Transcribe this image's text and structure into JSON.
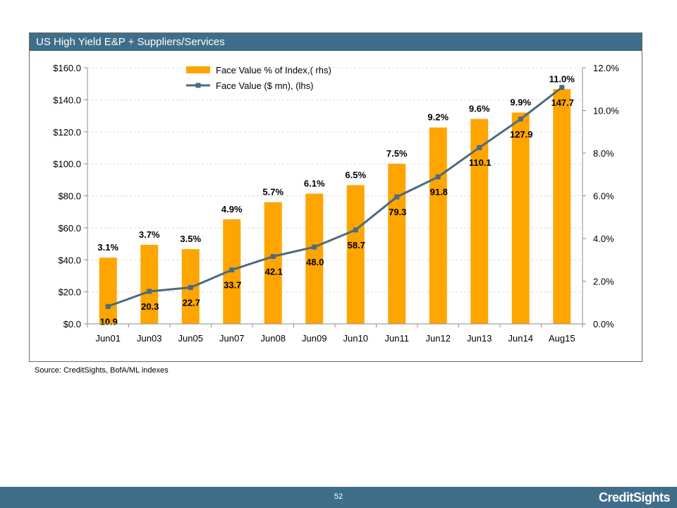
{
  "title": "US High Yield E&P + Suppliers/Services",
  "source": "Source: CreditSights, BofA/ML indexes",
  "page_number": "52",
  "brand": "CreditSights",
  "colors": {
    "bar": "#FFA500",
    "line": "#4a6b82",
    "header": "#3f6e8a"
  },
  "chart_data": {
    "type": "bar",
    "categories": [
      "Jun01",
      "Jun03",
      "Jun05",
      "Jun07",
      "Jun08",
      "Jun09",
      "Jun10",
      "Jun11",
      "Jun12",
      "Jun13",
      "Jun14",
      "Aug15"
    ],
    "series": [
      {
        "name": "Face Value % of Index,( rhs)",
        "type": "bar",
        "axis": "right",
        "values": [
          3.1,
          3.7,
          3.5,
          4.9,
          5.7,
          6.1,
          6.5,
          7.5,
          9.2,
          9.6,
          9.9,
          11.0
        ],
        "labels": [
          "3.1%",
          "3.7%",
          "3.5%",
          "4.9%",
          "5.7%",
          "6.1%",
          "6.5%",
          "7.5%",
          "9.2%",
          "9.6%",
          "9.9%",
          "11.0%"
        ]
      },
      {
        "name": "Face Value ($ mn), (lhs)",
        "type": "line",
        "axis": "left",
        "values": [
          10.9,
          20.3,
          22.7,
          33.7,
          42.1,
          48.0,
          58.7,
          79.3,
          91.8,
          110.1,
          127.9,
          147.7
        ],
        "labels": [
          "10.9",
          "20.3",
          "22.7",
          "33.7",
          "42.1",
          "48.0",
          "58.7",
          "79.3",
          "91.8",
          "110.1",
          "127.9",
          "147.7"
        ]
      }
    ],
    "y_left": {
      "min": 0,
      "max": 160,
      "ticks": [
        "$0.0",
        "$20.0",
        "$40.0",
        "$60.0",
        "$80.0",
        "$100.0",
        "$120.0",
        "$140.0",
        "$160.0"
      ]
    },
    "y_right": {
      "min": 0,
      "max": 12,
      "ticks": [
        "0.0%",
        "2.0%",
        "4.0%",
        "6.0%",
        "8.0%",
        "10.0%",
        "12.0%"
      ]
    },
    "grid": true,
    "legend_position": "top-center"
  }
}
